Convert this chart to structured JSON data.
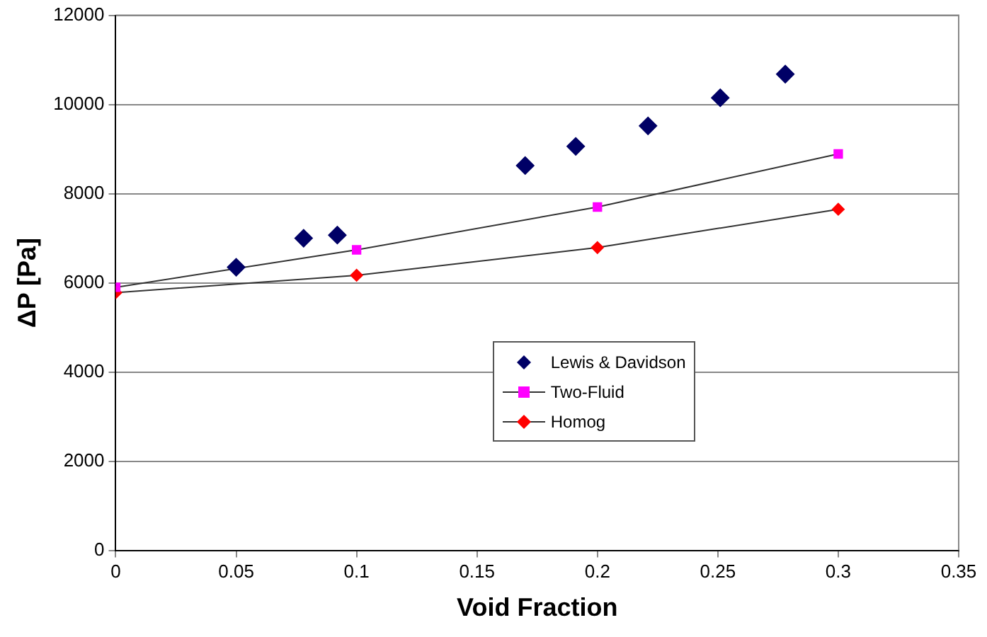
{
  "chart_data": {
    "type": "line",
    "xlabel": "Void Fraction",
    "ylabel": "ΔP [Pa]",
    "xlim": [
      0,
      0.35
    ],
    "xticks": [
      0,
      0.05,
      0.1,
      0.15,
      0.2,
      0.25,
      0.3,
      0.35
    ],
    "ylim": [
      0,
      12000
    ],
    "yticks": [
      0,
      2000,
      4000,
      6000,
      8000,
      10000,
      12000
    ],
    "grid": "y",
    "legend": "center",
    "series": [
      {
        "name": "Lewis & Davidson",
        "type": "scatter",
        "marker": "diamond",
        "color": "#000066",
        "x": [
          0.05,
          0.078,
          0.092,
          0.17,
          0.191,
          0.221,
          0.251,
          0.278
        ],
        "values": [
          6350,
          7000,
          7070,
          8630,
          9060,
          9520,
          10150,
          10680
        ]
      },
      {
        "name": "Two-Fluid",
        "marker": "square",
        "color": "#ff00ff",
        "x": [
          0,
          0.1,
          0.2,
          0.3
        ],
        "values": [
          5900,
          6740,
          7700,
          8890
        ]
      },
      {
        "name": "Homog",
        "marker": "diamond",
        "color": "#ff0000",
        "x": [
          0,
          0.1,
          0.2,
          0.3
        ],
        "values": [
          5780,
          6170,
          6790,
          7650
        ]
      }
    ]
  }
}
